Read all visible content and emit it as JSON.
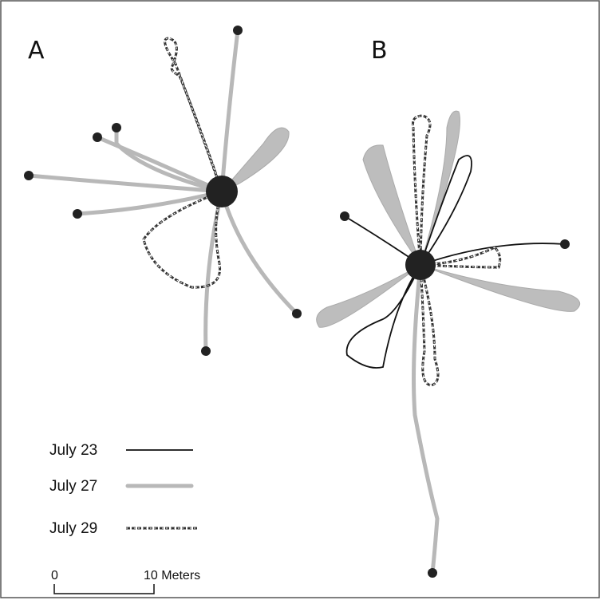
{
  "panels": [
    {
      "label": "A"
    },
    {
      "label": "B"
    }
  ],
  "legend": [
    {
      "label": "July 23"
    },
    {
      "label": "July 27"
    },
    {
      "label": "July 29"
    }
  ],
  "scale_bar": {
    "start": "0",
    "end": "10 Meters"
  }
}
